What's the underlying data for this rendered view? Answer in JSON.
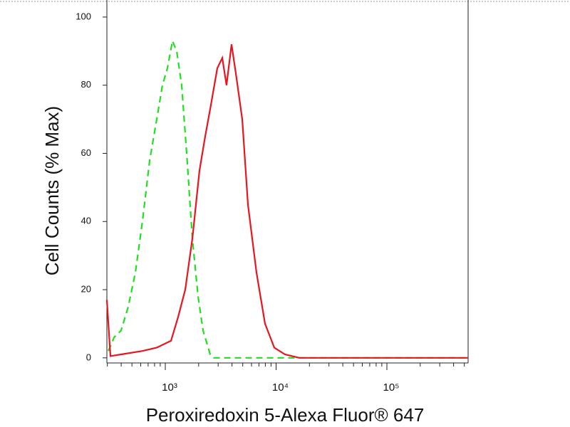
{
  "chart_data": {
    "type": "line",
    "xlabel": "Peroxiredoxin 5-Alexa Fluor® 647",
    "ylabel": "Cell Counts (% Max)",
    "xscale": "log",
    "xlim": [
      297,
      541000
    ],
    "ylim": [
      -1.5,
      105
    ],
    "xticks": [
      {
        "value": 1000,
        "label": "10³"
      },
      {
        "value": 10000,
        "label": "10⁴"
      },
      {
        "value": 100000,
        "label": "10⁵"
      }
    ],
    "yticks": [
      0,
      20,
      40,
      60,
      80,
      100
    ],
    "series": [
      {
        "color": "#22dd22",
        "dashed": true,
        "x": [
          306,
          345,
          399,
          463,
          537,
          622,
          723,
          837,
          942,
          1045,
          1159,
          1267,
          1406,
          1559,
          1755,
          1977,
          2193,
          2542,
          2735,
          541000
        ],
        "values": [
          2,
          6,
          8,
          15,
          25,
          40,
          58,
          70,
          80,
          85,
          93,
          90,
          80,
          60,
          35,
          18,
          8,
          1,
          0,
          0
        ]
      },
      {
        "color": "#e8141e",
        "dashed": false,
        "x": [
          297,
          320,
          399,
          622,
          837,
          1126,
          1306,
          1514,
          1755,
          2036,
          2293,
          2542,
          2946,
          3268,
          3570,
          3962,
          4394,
          4953,
          5573,
          6655,
          7947,
          9634,
          12029,
          16175,
          541000
        ],
        "values": [
          17,
          0.5,
          1,
          2,
          3,
          5,
          12,
          20,
          35,
          55,
          65,
          73,
          85,
          88,
          80,
          92,
          82,
          70,
          45,
          25,
          10,
          3,
          1,
          0,
          0
        ]
      }
    ]
  }
}
